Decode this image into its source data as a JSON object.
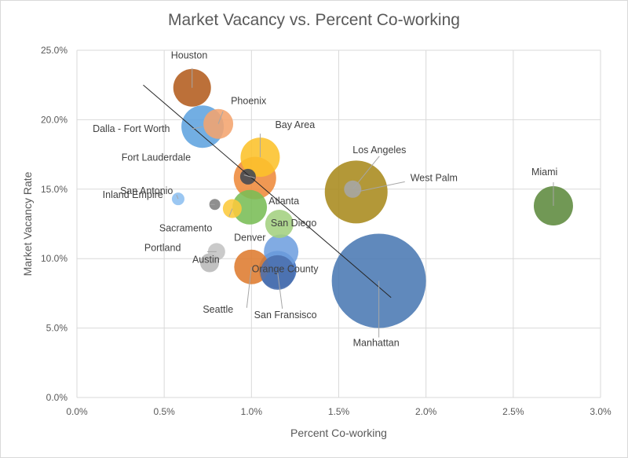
{
  "chart_data": {
    "type": "scatter",
    "title": "Market Vacancy vs. Percent Co-working",
    "xlabel": "Percent Co-working",
    "ylabel": "Market Vacancy Rate",
    "xlim": [
      0,
      0.03
    ],
    "ylim": [
      0,
      0.25
    ],
    "xticks": [
      "0.0%",
      "0.5%",
      "1.0%",
      "1.5%",
      "2.0%",
      "2.5%",
      "3.0%"
    ],
    "yticks": [
      "0.0%",
      "5.0%",
      "10.0%",
      "15.0%",
      "20.0%",
      "25.0%"
    ],
    "grid": true,
    "legend": "none",
    "trendline": {
      "x": [
        0.0038,
        0.018
      ],
      "y": [
        0.225,
        0.072
      ]
    },
    "points": [
      {
        "label": "Houston",
        "x": 0.0066,
        "y": 0.223,
        "size": 24,
        "color": "#b35c1e"
      },
      {
        "label": "Phoenix",
        "x": 0.0081,
        "y": 0.197,
        "size": 19,
        "color": "#f4a46e"
      },
      {
        "label": "Dalla - Fort Worth",
        "x": 0.0072,
        "y": 0.195,
        "size": 27,
        "color": "#5fa3df"
      },
      {
        "label": "Bay Area",
        "x": 0.0105,
        "y": 0.173,
        "size": 25,
        "color": "#fcc22a"
      },
      {
        "label": "Fort Lauderdale",
        "x": 0.0102,
        "y": 0.158,
        "size": 27,
        "color": "#ee8a3b"
      },
      {
        "label": "",
        "x": 0.0098,
        "y": 0.159,
        "size": 10,
        "color": "#404853"
      },
      {
        "label": "Los Angeles",
        "x": 0.0158,
        "y": 0.15,
        "size": 11,
        "color": "#a6a6a6"
      },
      {
        "label": "West Palm",
        "x": 0.016,
        "y": 0.148,
        "size": 40,
        "color": "#a98a1c"
      },
      {
        "label": "Miami",
        "x": 0.0273,
        "y": 0.138,
        "size": 25,
        "color": "#5d8a3e"
      },
      {
        "label": "San Antonio",
        "x": 0.0058,
        "y": 0.143,
        "size": 8,
        "color": "#8dbff0"
      },
      {
        "label": "Inland Empire",
        "x": 0.0079,
        "y": 0.139,
        "size": 7,
        "color": "#7f7f7f"
      },
      {
        "label": "Sacramento",
        "x": 0.0089,
        "y": 0.136,
        "size": 12,
        "color": "#fcc93b"
      },
      {
        "label": "Atlanta",
        "x": 0.0099,
        "y": 0.137,
        "size": 22,
        "color": "#79bd55"
      },
      {
        "label": "San Diego",
        "x": 0.0116,
        "y": 0.125,
        "size": 18,
        "color": "#a3d07f"
      },
      {
        "label": "Denver",
        "x": 0.0117,
        "y": 0.105,
        "size": 22,
        "color": "#6f9fdf"
      },
      {
        "label": "Orange County",
        "x": 0.0115,
        "y": 0.092,
        "size": 24,
        "color": "#3f6fbf"
      },
      {
        "label": "Portland",
        "x": 0.008,
        "y": 0.105,
        "size": 11,
        "color": "#c3c3c3"
      },
      {
        "label": "Austin",
        "x": 0.0076,
        "y": 0.097,
        "size": 12,
        "color": "#b8b8b8"
      },
      {
        "label": "Seattle",
        "x": 0.01,
        "y": 0.094,
        "size": 22,
        "color": "#de7b2f"
      },
      {
        "label": "San Fransisco",
        "x": 0.0115,
        "y": 0.09,
        "size": 22,
        "color": "#4b6fae"
      },
      {
        "label": "Manhattan",
        "x": 0.0173,
        "y": 0.084,
        "size": 60,
        "color": "#4a79b3"
      }
    ]
  }
}
